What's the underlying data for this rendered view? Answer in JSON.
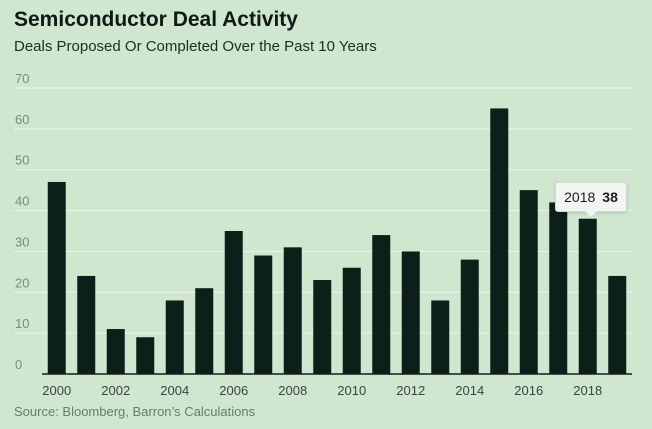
{
  "header": {
    "title": "Semiconductor Deal Activity",
    "subtitle": "Deals Proposed Or Completed Over the Past 10 Years"
  },
  "footer": {
    "source": "Source: Bloomberg, Barron’s Calculations"
  },
  "tooltip": {
    "year": "2018",
    "value": "38"
  },
  "colors": {
    "background": "#cfe6cf",
    "bar": "#0c1f19",
    "grid": "#eef4ee",
    "axis": "#1a1a1a"
  },
  "chart_data": {
    "type": "bar",
    "title": "Semiconductor Deal Activity",
    "subtitle": "Deals Proposed Or Completed Over the Past 10 Years",
    "xlabel": "",
    "ylabel": "",
    "x": [
      2000,
      2001,
      2002,
      2003,
      2004,
      2005,
      2006,
      2007,
      2008,
      2009,
      2010,
      2011,
      2012,
      2013,
      2014,
      2015,
      2016,
      2017,
      2018,
      2019
    ],
    "values": [
      47,
      24,
      11,
      9,
      18,
      21,
      35,
      29,
      31,
      23,
      26,
      34,
      30,
      18,
      28,
      65,
      45,
      42,
      38,
      24
    ],
    "x_tick_labels": [
      "2000",
      "2002",
      "2004",
      "2006",
      "2008",
      "2010",
      "2012",
      "2014",
      "2016",
      "2018"
    ],
    "y_ticks": [
      0,
      10,
      20,
      30,
      40,
      50,
      60,
      70
    ],
    "ylim": [
      0,
      70
    ],
    "grid": true,
    "highlight": {
      "x": 2018,
      "value": 38
    }
  }
}
